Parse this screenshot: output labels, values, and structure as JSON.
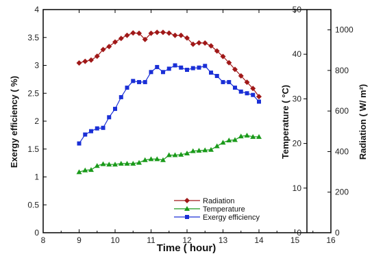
{
  "chart_data": {
    "type": "line",
    "xlabel": "Time ( hour)",
    "x_range": [
      8,
      16
    ],
    "x_ticks": [
      "8",
      "9",
      "10",
      "11",
      "12",
      "13",
      "14",
      "15",
      "16"
    ],
    "axes": {
      "left": {
        "label": "Exergy efficiency ( %)",
        "range": [
          0,
          4
        ],
        "ticks": [
          "0",
          "0.5",
          "1",
          "1.5",
          "2",
          "2.5",
          "3",
          "3.5",
          "4"
        ]
      },
      "temperature": {
        "label": "Temperature ( °C)",
        "range": [
          0,
          50
        ],
        "ticks": [
          "0",
          "10",
          "20",
          "30",
          "40",
          "50"
        ]
      },
      "radiation": {
        "label": "Radiation ( W/ m²)",
        "range": [
          0,
          1100
        ],
        "ticks": [
          "0",
          "200",
          "400",
          "600",
          "800",
          "1000"
        ]
      }
    },
    "legend_position": "bottom-right",
    "series": [
      {
        "name": "Radiation",
        "axis": "radiation",
        "color": "#a01818",
        "marker": "diamond",
        "x": [
          9.0,
          9.167,
          9.333,
          9.5,
          9.667,
          9.833,
          10.0,
          10.167,
          10.333,
          10.5,
          10.667,
          10.833,
          11.0,
          11.167,
          11.333,
          11.5,
          11.667,
          11.833,
          12.0,
          12.167,
          12.333,
          12.5,
          12.667,
          12.833,
          13.0,
          13.167,
          13.333,
          13.5,
          13.667,
          13.833,
          14.0
        ],
        "values": [
          837,
          845,
          851,
          870,
          903,
          918,
          940,
          958,
          973,
          985,
          983,
          953,
          983,
          988,
          988,
          984,
          973,
          973,
          960,
          929,
          936,
          935,
          921,
          896,
          869,
          838,
          805,
          773,
          742,
          711,
          671
        ]
      },
      {
        "name": "Temperature",
        "axis": "temperature",
        "color": "#1a9a1a",
        "marker": "triangle",
        "x": [
          9.0,
          9.167,
          9.333,
          9.5,
          9.667,
          9.833,
          10.0,
          10.167,
          10.333,
          10.5,
          10.667,
          10.833,
          11.0,
          11.167,
          11.333,
          11.5,
          11.667,
          11.833,
          12.0,
          12.167,
          12.333,
          12.5,
          12.667,
          12.833,
          13.0,
          13.167,
          13.333,
          13.5,
          13.667,
          13.833,
          14.0
        ],
        "values": [
          13.6,
          14.0,
          14.1,
          15.0,
          15.4,
          15.3,
          15.3,
          15.5,
          15.5,
          15.5,
          15.7,
          16.3,
          16.5,
          16.5,
          16.3,
          17.4,
          17.4,
          17.5,
          17.8,
          18.3,
          18.4,
          18.5,
          18.6,
          19.4,
          20.2,
          20.7,
          20.8,
          21.6,
          21.8,
          21.5,
          21.5
        ]
      },
      {
        "name": "Exergy efficiency",
        "axis": "left",
        "color": "#1a2fd6",
        "marker": "square",
        "x": [
          9.0,
          9.167,
          9.333,
          9.5,
          9.667,
          9.833,
          10.0,
          10.167,
          10.333,
          10.5,
          10.667,
          10.833,
          11.0,
          11.167,
          11.333,
          11.5,
          11.667,
          11.833,
          12.0,
          12.167,
          12.333,
          12.5,
          12.667,
          12.833,
          13.0,
          13.167,
          13.333,
          13.5,
          13.667,
          13.833,
          14.0
        ],
        "values": [
          1.6,
          1.76,
          1.82,
          1.87,
          1.88,
          2.07,
          2.22,
          2.43,
          2.6,
          2.72,
          2.7,
          2.7,
          2.88,
          2.97,
          2.88,
          2.94,
          3.0,
          2.96,
          2.92,
          2.95,
          2.96,
          2.99,
          2.87,
          2.81,
          2.7,
          2.7,
          2.6,
          2.53,
          2.5,
          2.47,
          2.35
        ]
      }
    ]
  }
}
